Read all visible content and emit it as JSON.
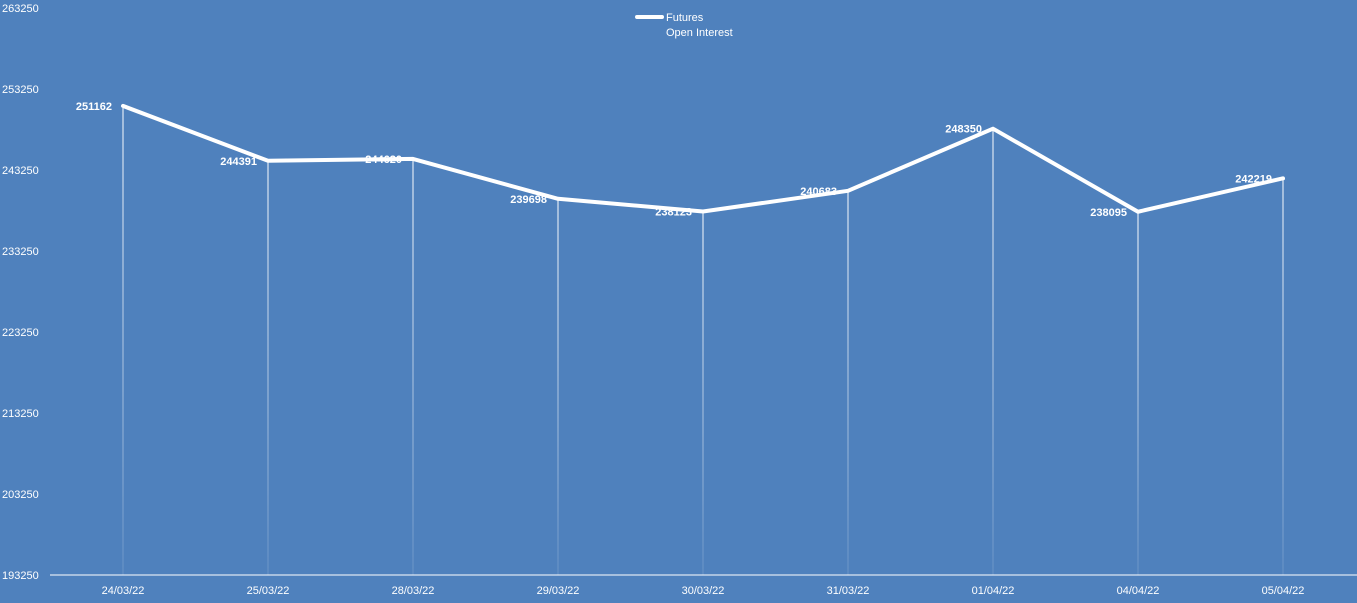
{
  "chart_data": {
    "type": "line",
    "categories": [
      "24/03/22",
      "25/03/22",
      "28/03/22",
      "29/03/22",
      "30/03/22",
      "31/03/22",
      "01/04/22",
      "04/04/22",
      "05/04/22"
    ],
    "series": [
      {
        "name": "Futures\nOpen Interest",
        "values": [
          251162,
          244391,
          244620,
          239698,
          238123,
          240683,
          248350,
          238095,
          242219
        ],
        "color": "#ffffff"
      }
    ],
    "title": "",
    "xlabel": "",
    "ylabel": "",
    "ylim": [
      193250,
      263250
    ],
    "yticks": [
      193250,
      203250,
      213250,
      223250,
      233250,
      243250,
      253250,
      263250
    ],
    "grid": false,
    "drop_lines": true,
    "data_labels": true,
    "legend": {
      "position": "top-center",
      "lines": [
        "Futures",
        "Open Interest"
      ]
    },
    "background_color": "#4f81bd"
  }
}
